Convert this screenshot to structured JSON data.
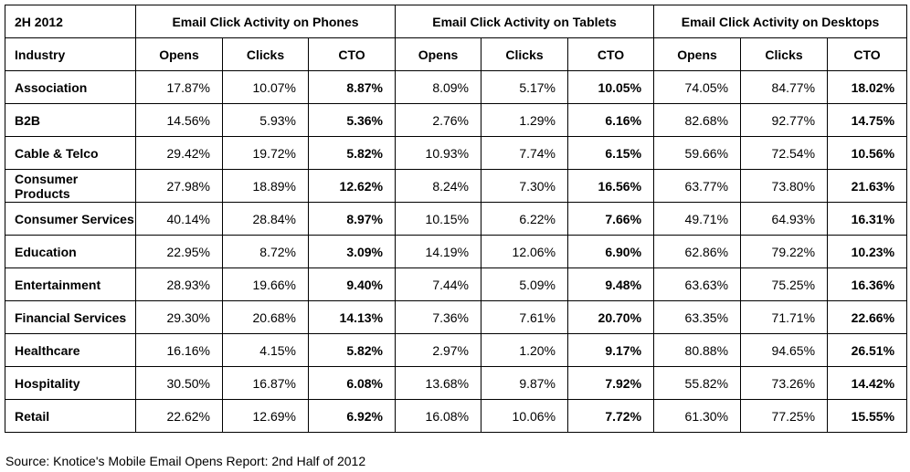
{
  "table": {
    "period_label": "2H 2012",
    "groups": [
      "Email Click Activity on Phones",
      "Email Click Activity on Tablets",
      "Email Click Activity on Desktops"
    ],
    "industry_header": "Industry",
    "metric_headers": [
      "Opens",
      "Clicks",
      "CTO"
    ],
    "rows": [
      {
        "industry": "Association",
        "values": [
          "17.87%",
          "10.07%",
          "8.87%",
          "8.09%",
          "5.17%",
          "10.05%",
          "74.05%",
          "84.77%",
          "18.02%"
        ]
      },
      {
        "industry": "B2B",
        "values": [
          "14.56%",
          "5.93%",
          "5.36%",
          "2.76%",
          "1.29%",
          "6.16%",
          "82.68%",
          "92.77%",
          "14.75%"
        ]
      },
      {
        "industry": "Cable & Telco",
        "values": [
          "29.42%",
          "19.72%",
          "5.82%",
          "10.93%",
          "7.74%",
          "6.15%",
          "59.66%",
          "72.54%",
          "10.56%"
        ]
      },
      {
        "industry": "Consumer Products",
        "values": [
          "27.98%",
          "18.89%",
          "12.62%",
          "8.24%",
          "7.30%",
          "16.56%",
          "63.77%",
          "73.80%",
          "21.63%"
        ]
      },
      {
        "industry": "Consumer Services",
        "values": [
          "40.14%",
          "28.84%",
          "8.97%",
          "10.15%",
          "6.22%",
          "7.66%",
          "49.71%",
          "64.93%",
          "16.31%"
        ]
      },
      {
        "industry": "Education",
        "values": [
          "22.95%",
          "8.72%",
          "3.09%",
          "14.19%",
          "12.06%",
          "6.90%",
          "62.86%",
          "79.22%",
          "10.23%"
        ]
      },
      {
        "industry": "Entertainment",
        "values": [
          "28.93%",
          "19.66%",
          "9.40%",
          "7.44%",
          "5.09%",
          "9.48%",
          "63.63%",
          "75.25%",
          "16.36%"
        ]
      },
      {
        "industry": "Financial Services",
        "values": [
          "29.30%",
          "20.68%",
          "14.13%",
          "7.36%",
          "7.61%",
          "20.70%",
          "63.35%",
          "71.71%",
          "22.66%"
        ]
      },
      {
        "industry": "Healthcare",
        "values": [
          "16.16%",
          "4.15%",
          "5.82%",
          "2.97%",
          "1.20%",
          "9.17%",
          "80.88%",
          "94.65%",
          "26.51%"
        ]
      },
      {
        "industry": "Hospitality",
        "values": [
          "30.50%",
          "16.87%",
          "6.08%",
          "13.68%",
          "9.87%",
          "7.92%",
          "55.82%",
          "73.26%",
          "14.42%"
        ]
      },
      {
        "industry": "Retail",
        "values": [
          "22.62%",
          "12.69%",
          "6.92%",
          "16.08%",
          "10.06%",
          "7.72%",
          "61.30%",
          "77.25%",
          "15.55%"
        ]
      }
    ]
  },
  "source": "Source: Knotice's Mobile Email Opens Report: 2nd Half of 2012"
}
